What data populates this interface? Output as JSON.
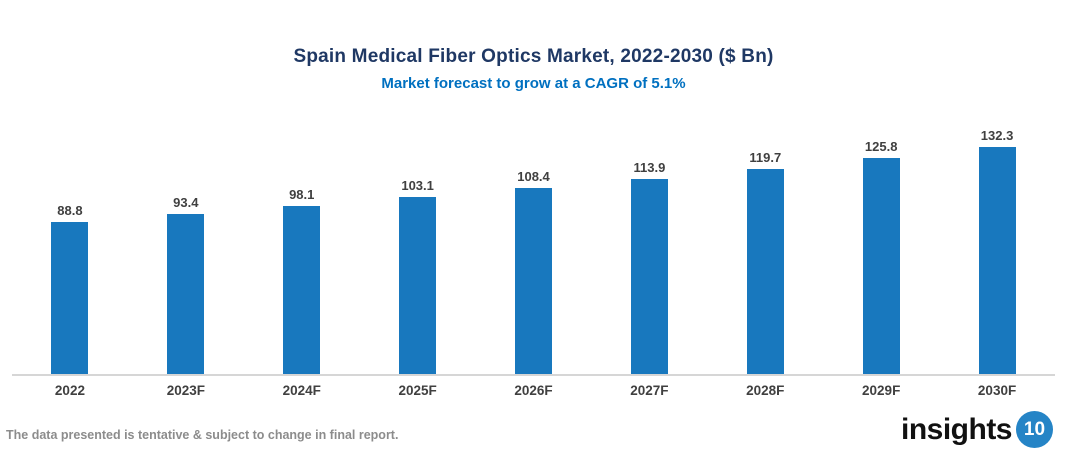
{
  "header": {
    "title": "Spain Medical Fiber Optics Market, 2022-2030 ($ Bn)",
    "subtitle": "Market forecast to grow at a CAGR of 5.1%",
    "title_color": "#1F3864",
    "subtitle_color": "#0070C0"
  },
  "chart_data": {
    "type": "bar",
    "title": "Spain Medical Fiber Optics Market, 2022-2030 ($ Bn)",
    "subtitle": "Market forecast to grow at a CAGR of 5.1%",
    "categories": [
      "2022",
      "2023F",
      "2024F",
      "2025F",
      "2026F",
      "2027F",
      "2028F",
      "2029F",
      "2030F"
    ],
    "values": [
      88.8,
      93.4,
      98.1,
      103.1,
      108.4,
      113.9,
      119.7,
      125.8,
      132.3
    ],
    "xlabel": "",
    "ylabel": "",
    "ylim": [
      0,
      140
    ],
    "grid": false,
    "legend": "none",
    "data_labels": true,
    "bar_color": "#1878BE",
    "value_label_color": "#404040",
    "axis_label_color": "#404040",
    "axis_line_color": "#D6D6D6"
  },
  "footer": {
    "disclaimer": "The data presented is tentative & subject to change in final report.",
    "logo": {
      "text": "insights",
      "badge": "10",
      "badge_color": "#2584C6"
    }
  }
}
